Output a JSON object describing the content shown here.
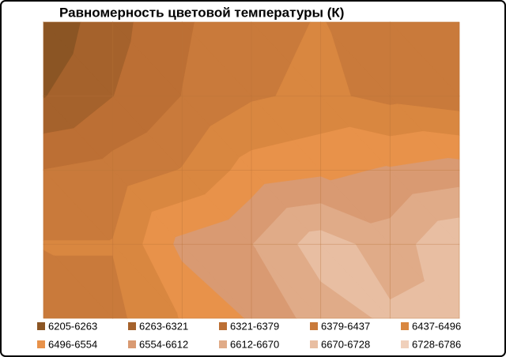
{
  "chart_data": {
    "type": "contour",
    "title": "Равномерность  цветовой температуры  (К)",
    "values": [
      [
        6220,
        6300,
        6370,
        6420,
        6440,
        6400,
        6390
      ],
      [
        6260,
        6320,
        6380,
        6430,
        6450,
        6420,
        6400
      ],
      [
        6380,
        6400,
        6440,
        6520,
        6540,
        6560,
        6580
      ],
      [
        6440,
        6440,
        6570,
        6610,
        6700,
        6640,
        6720
      ],
      [
        6400,
        6420,
        6500,
        6560,
        6640,
        6680,
        6700
      ]
    ],
    "bands": [
      {
        "label": "6205-6263",
        "min": 6205,
        "max": 6263,
        "color": "#8b5524"
      },
      {
        "label": "6263-6321",
        "min": 6263,
        "max": 6321,
        "color": "#a5622c"
      },
      {
        "label": "6321-6379",
        "min": 6321,
        "max": 6379,
        "color": "#bc6f34"
      },
      {
        "label": "6379-6437",
        "min": 6379,
        "max": 6437,
        "color": "#c97a3b"
      },
      {
        "label": "6437-6496",
        "min": 6437,
        "max": 6496,
        "color": "#d98740"
      },
      {
        "label": "6496-6554",
        "min": 6496,
        "max": 6554,
        "color": "#e8924a"
      },
      {
        "label": "6554-6612",
        "min": 6554,
        "max": 6612,
        "color": "#d99a72"
      },
      {
        "label": "6612-6670",
        "min": 6612,
        "max": 6670,
        "color": "#e0ab88"
      },
      {
        "label": "6670-6728",
        "min": 6670,
        "max": 6728,
        "color": "#e8bea2"
      },
      {
        "label": "6728-6786",
        "min": 6728,
        "max": 6786,
        "color": "#f0d0bb"
      }
    ],
    "grid": true
  }
}
